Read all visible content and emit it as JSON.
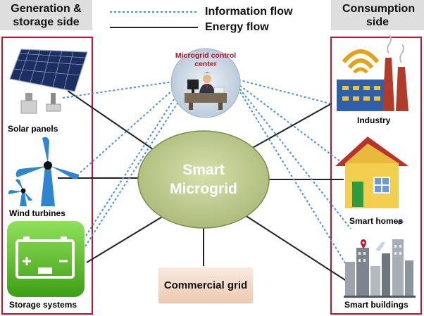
{
  "headers": {
    "left": "Generation & storage side",
    "right": "Consumption side"
  },
  "legend": {
    "info": "Information flow",
    "energy": "Energy flow"
  },
  "center": {
    "line1": "Smart",
    "line2": "Microgrid"
  },
  "control_center": "Microgrid control center",
  "commercial_grid": "Commercial grid",
  "left_items": [
    "Solar panels",
    "Wind turbines",
    "Storage systems"
  ],
  "right_items": [
    "Industry",
    "Smart homes",
    "Smart buildings"
  ],
  "colors": {
    "frame": "#c8102e",
    "energy": "#222222",
    "info": "#4a8fe0",
    "center_fill": "#c6d19a",
    "header_bg": "#dedede"
  }
}
